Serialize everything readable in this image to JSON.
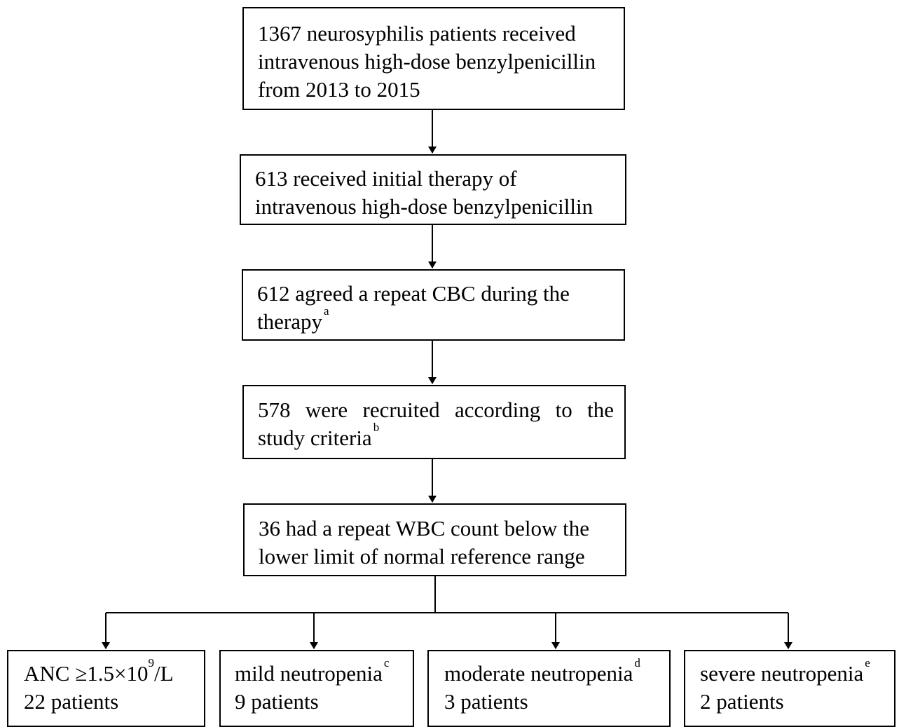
{
  "flowchart": {
    "step1": {
      "line1": "1367 neurosyphilis patients received",
      "line2": "intravenous high-dose benzylpenicillin",
      "line3": "from 2013 to 2015"
    },
    "step2": {
      "line1": "613 received initial therapy of",
      "line2": "intravenous high-dose benzylpenicillin"
    },
    "step3": {
      "line1": "612 agreed a repeat CBC during the",
      "line2": "therapy",
      "note": "a"
    },
    "step4": {
      "text": "578 were recruited according to the study criteria",
      "note": "b"
    },
    "step5": {
      "line1": "36 had a repeat WBC count below the",
      "line2": "lower limit of normal reference range"
    },
    "outcomes": [
      {
        "label_pre": "ANC ≥1.5×10",
        "label_sup": "9",
        "label_post": "/L",
        "count": "22 patients"
      },
      {
        "label": "mild neutropenia",
        "note": "c",
        "count": "9 patients"
      },
      {
        "label": "moderate neutropenia",
        "note": "d",
        "count": "3 patients"
      },
      {
        "label": "severe neutropenia",
        "note": "e",
        "count": "2 patients"
      }
    ]
  }
}
